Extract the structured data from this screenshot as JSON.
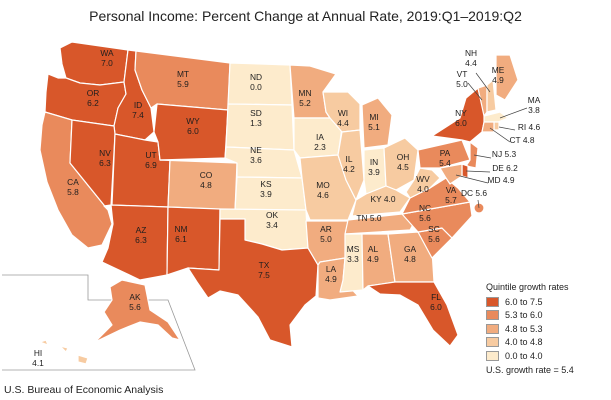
{
  "title": "Personal Income: Percent Change at Annual Rate, 2019:Q1–2019:Q2",
  "source": "U.S. Bureau of Economic Analysis",
  "legend": {
    "title": "Quintile growth rates",
    "items": [
      {
        "label": "6.0 to 7.5",
        "color": "#d8572a"
      },
      {
        "label": "5.3 to 6.0",
        "color": "#e98a5c"
      },
      {
        "label": "4.8 to 5.3",
        "color": "#f1ac7f"
      },
      {
        "label": "4.0 to 4.8",
        "color": "#f7cba1"
      },
      {
        "label": "0.0 to 4.0",
        "color": "#fdebcc"
      }
    ],
    "note": "U.S. growth rate = 5.4"
  },
  "states": [
    {
      "abbr": "WA",
      "value": "7.0"
    },
    {
      "abbr": "OR",
      "value": "6.2"
    },
    {
      "abbr": "CA",
      "value": "5.8"
    },
    {
      "abbr": "ID",
      "value": "7.4"
    },
    {
      "abbr": "NV",
      "value": "6.3"
    },
    {
      "abbr": "UT",
      "value": "6.9"
    },
    {
      "abbr": "AZ",
      "value": "6.3"
    },
    {
      "abbr": "MT",
      "value": "5.9"
    },
    {
      "abbr": "WY",
      "value": "6.0"
    },
    {
      "abbr": "CO",
      "value": "4.8"
    },
    {
      "abbr": "NM",
      "value": "6.1"
    },
    {
      "abbr": "ND",
      "value": "0.0"
    },
    {
      "abbr": "SD",
      "value": "1.3"
    },
    {
      "abbr": "NE",
      "value": "3.6"
    },
    {
      "abbr": "KS",
      "value": "3.9"
    },
    {
      "abbr": "OK",
      "value": "3.4"
    },
    {
      "abbr": "TX",
      "value": "7.5"
    },
    {
      "abbr": "MN",
      "value": "5.2"
    },
    {
      "abbr": "IA",
      "value": "2.3"
    },
    {
      "abbr": "MO",
      "value": "4.6"
    },
    {
      "abbr": "AR",
      "value": "5.0"
    },
    {
      "abbr": "LA",
      "value": "4.9"
    },
    {
      "abbr": "WI",
      "value": "4.4"
    },
    {
      "abbr": "IL",
      "value": "4.2"
    },
    {
      "abbr": "MI",
      "value": "5.1"
    },
    {
      "abbr": "IN",
      "value": "3.9"
    },
    {
      "abbr": "OH",
      "value": "4.5"
    },
    {
      "abbr": "KY",
      "value": "4.0"
    },
    {
      "abbr": "TN",
      "value": "5.0"
    },
    {
      "abbr": "MS",
      "value": "3.3"
    },
    {
      "abbr": "AL",
      "value": "4.9"
    },
    {
      "abbr": "GA",
      "value": "4.8"
    },
    {
      "abbr": "FL",
      "value": "6.0"
    },
    {
      "abbr": "SC",
      "value": "5.6"
    },
    {
      "abbr": "NC",
      "value": "5.6"
    },
    {
      "abbr": "VA",
      "value": "5.7"
    },
    {
      "abbr": "WV",
      "value": "4.0"
    },
    {
      "abbr": "PA",
      "value": "5.4"
    },
    {
      "abbr": "NY",
      "value": "6.0"
    },
    {
      "abbr": "ME",
      "value": "4.9"
    },
    {
      "abbr": "VT",
      "value": "5.0"
    },
    {
      "abbr": "NH",
      "value": "4.4"
    },
    {
      "abbr": "MA",
      "value": "3.8"
    },
    {
      "abbr": "RI",
      "value": "4.6"
    },
    {
      "abbr": "CT",
      "value": "4.8"
    },
    {
      "abbr": "NJ",
      "value": "5.3"
    },
    {
      "abbr": "DE",
      "value": "6.2"
    },
    {
      "abbr": "MD",
      "value": "4.9"
    },
    {
      "abbr": "DC",
      "value": "5.6"
    },
    {
      "abbr": "AK",
      "value": "5.6"
    },
    {
      "abbr": "HI",
      "value": "4.1"
    }
  ]
}
